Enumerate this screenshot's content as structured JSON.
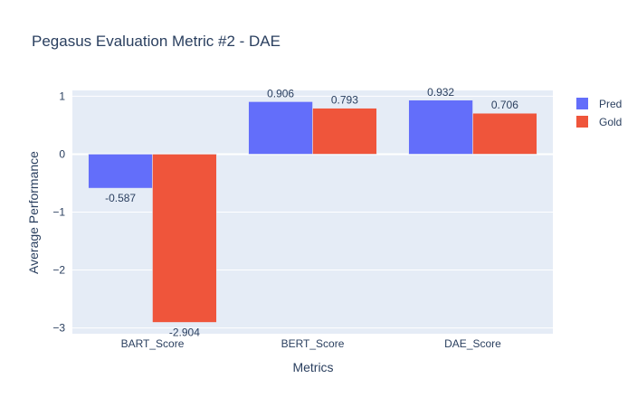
{
  "chart_data": {
    "type": "bar",
    "title": "Pegasus Evaluation Metric #2 - DAE",
    "xlabel": "Metrics",
    "ylabel": "Average Performance",
    "categories": [
      "BART_Score",
      "BERT_Score",
      "DAE_Score"
    ],
    "series": [
      {
        "name": "Pred",
        "values": [
          -0.587,
          0.906,
          0.932
        ],
        "labels": [
          "-0.587",
          "0.906",
          "0.932"
        ],
        "color": "#636efa"
      },
      {
        "name": "Gold",
        "values": [
          -2.904,
          0.793,
          0.706
        ],
        "labels": [
          "-2.904",
          "0.793",
          "0.706"
        ],
        "color": "#ef553b"
      }
    ],
    "ylim": [
      -3.1,
      1.1
    ],
    "yticks": [
      1,
      0,
      -1,
      -2,
      -3
    ],
    "ytick_labels": [
      "1",
      "0",
      "−1",
      "−2",
      "−3"
    ],
    "grid": true,
    "legend_position": "top-right",
    "plot_background": "#e5ecf6"
  }
}
